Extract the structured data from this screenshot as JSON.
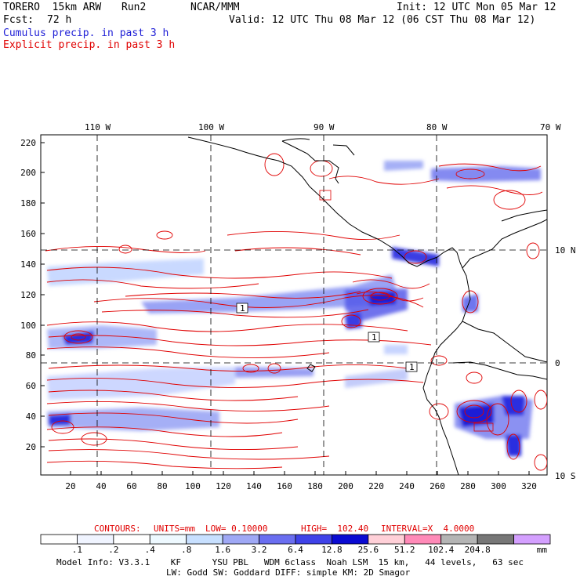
{
  "header": {
    "model": "TORERO  15km ARW",
    "run": "Run2",
    "center": "NCAR/MMM",
    "init": "Init: 12 UTC Mon 05 Mar 12",
    "fcst_label": "Fcst:",
    "fcst_value": "72 h",
    "valid": "Valid: 12 UTC Thu 08 Mar 12 (06 CST Thu 08 Mar 12)",
    "cumulus_label": "Cumulus precip. in past 3 h",
    "explicit_label": "Explicit precip. in past 3 h"
  },
  "colors": {
    "cumulus": "#1e1ed6",
    "explicit": "#e00000",
    "coast": "#000000"
  },
  "map": {
    "top_lon_labels": [
      "110 W",
      "100 W",
      "90 W",
      "80 W",
      "70 W"
    ],
    "right_lat_labels": [
      "10 N",
      "0",
      "10 S"
    ],
    "y_ticks": [
      "220",
      "200",
      "180",
      "160",
      "140",
      "120",
      "100",
      "80",
      "60",
      "40",
      "20"
    ],
    "x_ticks": [
      "20",
      "40",
      "60",
      "80",
      "100",
      "120",
      "140",
      "160",
      "180",
      "200",
      "220",
      "240",
      "260",
      "280",
      "300",
      "320"
    ],
    "box_labels": [
      "1",
      "1",
      "1",
      "1"
    ]
  },
  "contours_info": {
    "contours": "CONTOURS:",
    "units": "UNITS=mm",
    "low": "LOW= 0.10000",
    "high": "HIGH=  102.40",
    "interval": "INTERVAL=X  4.0000"
  },
  "colorbar": {
    "labels": [
      ".1",
      ".2",
      ".4",
      ".8",
      "1.6",
      "3.2",
      "6.4",
      "12.8",
      "25.6",
      "51.2",
      "102.4",
      "204.8"
    ],
    "colors": [
      "#ffffff",
      "#f0f4ff",
      "#ffffff",
      "#eef9ff",
      "#c8e0ff",
      "#9fa8f5",
      "#6a6ef0",
      "#3f42e8",
      "#0a0ad2",
      "#ffd0d8",
      "#ff8ab8",
      "#b4b4b4",
      "#777777",
      "#d4a0ff"
    ],
    "unit": "mm"
  },
  "footer": {
    "line1": "Model Info: V3.3.1    KF      YSU PBL   WDM 6class  Noah LSM  15 km,   44 levels,   63 sec",
    "line2": "LW: Godd SW: Goddard DIFF: simple KM: 2D Smagor"
  }
}
